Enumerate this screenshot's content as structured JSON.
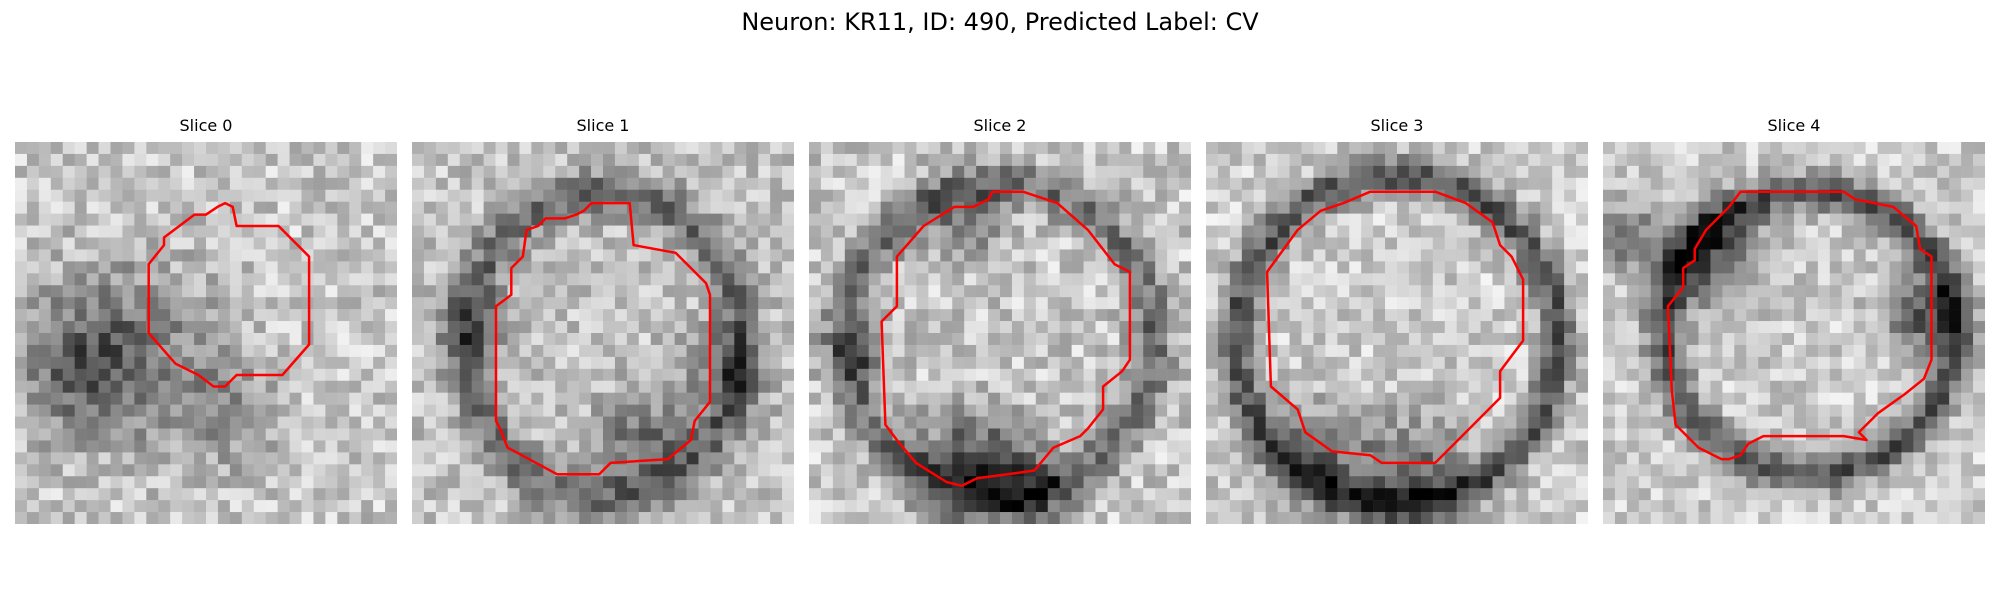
{
  "figure": {
    "title": "Neuron: KR11, ID: 490, Predicted Label: CV"
  },
  "panels": [
    {
      "title": "Slice 0",
      "seed": 11,
      "base_gray": 200,
      "noise": 42,
      "dark_blobs": [
        [
          0.28,
          0.55,
          0.16,
          0.45
        ],
        [
          0.15,
          0.6,
          0.1,
          0.3
        ],
        [
          0.55,
          0.72,
          0.1,
          0.25
        ]
      ],
      "ring": null,
      "contour": [
        [
          0.55,
          0.16
        ],
        [
          0.57,
          0.17
        ],
        [
          0.58,
          0.22
        ],
        [
          0.69,
          0.22
        ],
        [
          0.77,
          0.3
        ],
        [
          0.77,
          0.53
        ],
        [
          0.7,
          0.61
        ],
        [
          0.58,
          0.61
        ],
        [
          0.55,
          0.64
        ],
        [
          0.52,
          0.64
        ],
        [
          0.48,
          0.61
        ],
        [
          0.42,
          0.58
        ],
        [
          0.35,
          0.5
        ],
        [
          0.35,
          0.32
        ],
        [
          0.39,
          0.27
        ],
        [
          0.39,
          0.25
        ],
        [
          0.47,
          0.19
        ],
        [
          0.5,
          0.19
        ],
        [
          0.53,
          0.17
        ]
      ]
    },
    {
      "title": "Slice 1",
      "seed": 23,
      "base_gray": 195,
      "noise": 40,
      "dark_blobs": [
        [
          0.82,
          0.6,
          0.08,
          0.35
        ],
        [
          0.6,
          0.78,
          0.08,
          0.45
        ],
        [
          0.16,
          0.48,
          0.07,
          0.3
        ]
      ],
      "ring": [
        0.5,
        0.53,
        0.36,
        0.4,
        0.08,
        0.45
      ],
      "contour": [
        [
          0.47,
          0.16
        ],
        [
          0.57,
          0.16
        ],
        [
          0.58,
          0.27
        ],
        [
          0.69,
          0.29
        ],
        [
          0.77,
          0.37
        ],
        [
          0.78,
          0.4
        ],
        [
          0.78,
          0.68
        ],
        [
          0.74,
          0.73
        ],
        [
          0.73,
          0.78
        ],
        [
          0.67,
          0.83
        ],
        [
          0.52,
          0.84
        ],
        [
          0.49,
          0.87
        ],
        [
          0.38,
          0.87
        ],
        [
          0.25,
          0.8
        ],
        [
          0.23,
          0.75
        ],
        [
          0.22,
          0.73
        ],
        [
          0.22,
          0.43
        ],
        [
          0.26,
          0.4
        ],
        [
          0.26,
          0.33
        ],
        [
          0.29,
          0.3
        ],
        [
          0.3,
          0.23
        ],
        [
          0.33,
          0.22
        ],
        [
          0.35,
          0.2
        ],
        [
          0.4,
          0.2
        ],
        [
          0.43,
          0.19
        ],
        [
          0.45,
          0.18
        ]
      ]
    },
    {
      "title": "Slice 2",
      "seed": 37,
      "base_gray": 200,
      "noise": 44,
      "dark_blobs": [
        [
          0.42,
          0.84,
          0.1,
          0.55
        ],
        [
          0.58,
          0.9,
          0.08,
          0.4
        ],
        [
          0.12,
          0.55,
          0.06,
          0.35
        ],
        [
          0.42,
          0.22,
          0.07,
          0.35
        ]
      ],
      "ring": [
        0.5,
        0.52,
        0.4,
        0.41,
        0.08,
        0.45
      ],
      "contour": [
        [
          0.38,
          0.17
        ],
        [
          0.43,
          0.17
        ],
        [
          0.47,
          0.15
        ],
        [
          0.48,
          0.13
        ],
        [
          0.56,
          0.13
        ],
        [
          0.65,
          0.16
        ],
        [
          0.73,
          0.23
        ],
        [
          0.8,
          0.32
        ],
        [
          0.84,
          0.34
        ],
        [
          0.84,
          0.57
        ],
        [
          0.82,
          0.6
        ],
        [
          0.77,
          0.64
        ],
        [
          0.77,
          0.7
        ],
        [
          0.73,
          0.75
        ],
        [
          0.71,
          0.77
        ],
        [
          0.64,
          0.8
        ],
        [
          0.59,
          0.86
        ],
        [
          0.52,
          0.87
        ],
        [
          0.44,
          0.88
        ],
        [
          0.4,
          0.9
        ],
        [
          0.36,
          0.89
        ],
        [
          0.28,
          0.84
        ],
        [
          0.23,
          0.78
        ],
        [
          0.2,
          0.74
        ],
        [
          0.19,
          0.47
        ],
        [
          0.23,
          0.43
        ],
        [
          0.23,
          0.3
        ],
        [
          0.3,
          0.22
        ]
      ]
    },
    {
      "title": "Slice 3",
      "seed": 53,
      "base_gray": 205,
      "noise": 40,
      "dark_blobs": [
        [
          0.3,
          0.83,
          0.1,
          0.4
        ],
        [
          0.55,
          0.86,
          0.1,
          0.45
        ]
      ],
      "ring": [
        0.5,
        0.52,
        0.42,
        0.43,
        0.07,
        0.6
      ],
      "contour": [
        [
          0.36,
          0.16
        ],
        [
          0.43,
          0.13
        ],
        [
          0.6,
          0.13
        ],
        [
          0.68,
          0.16
        ],
        [
          0.75,
          0.21
        ],
        [
          0.77,
          0.27
        ],
        [
          0.8,
          0.3
        ],
        [
          0.83,
          0.36
        ],
        [
          0.83,
          0.52
        ],
        [
          0.8,
          0.56
        ],
        [
          0.77,
          0.6
        ],
        [
          0.77,
          0.67
        ],
        [
          0.64,
          0.8
        ],
        [
          0.6,
          0.84
        ],
        [
          0.46,
          0.84
        ],
        [
          0.43,
          0.82
        ],
        [
          0.33,
          0.81
        ],
        [
          0.26,
          0.76
        ],
        [
          0.24,
          0.7
        ],
        [
          0.17,
          0.64
        ],
        [
          0.16,
          0.34
        ],
        [
          0.24,
          0.23
        ],
        [
          0.3,
          0.18
        ]
      ]
    },
    {
      "title": "Slice 4",
      "seed": 71,
      "base_gray": 205,
      "noise": 38,
      "dark_blobs": [
        [
          0.83,
          0.45,
          0.07,
          0.55
        ],
        [
          0.05,
          0.25,
          0.06,
          0.45
        ],
        [
          0.28,
          0.3,
          0.1,
          0.5
        ]
      ],
      "ring": [
        0.54,
        0.5,
        0.38,
        0.37,
        0.07,
        0.6
      ],
      "contour": [
        [
          0.36,
          0.13
        ],
        [
          0.42,
          0.13
        ],
        [
          0.63,
          0.13
        ],
        [
          0.66,
          0.15
        ],
        [
          0.76,
          0.17
        ],
        [
          0.82,
          0.22
        ],
        [
          0.83,
          0.28
        ],
        [
          0.86,
          0.3
        ],
        [
          0.86,
          0.57
        ],
        [
          0.84,
          0.62
        ],
        [
          0.79,
          0.66
        ],
        [
          0.72,
          0.71
        ],
        [
          0.67,
          0.76
        ],
        [
          0.69,
          0.78
        ],
        [
          0.63,
          0.77
        ],
        [
          0.42,
          0.77
        ],
        [
          0.38,
          0.79
        ],
        [
          0.36,
          0.82
        ],
        [
          0.33,
          0.83
        ],
        [
          0.31,
          0.83
        ],
        [
          0.25,
          0.8
        ],
        [
          0.19,
          0.74
        ],
        [
          0.18,
          0.65
        ],
        [
          0.17,
          0.43
        ],
        [
          0.21,
          0.38
        ],
        [
          0.21,
          0.33
        ],
        [
          0.24,
          0.31
        ],
        [
          0.24,
          0.28
        ],
        [
          0.27,
          0.23
        ],
        [
          0.33,
          0.17
        ]
      ]
    }
  ],
  "colors": {
    "contour": "#ff0000"
  }
}
